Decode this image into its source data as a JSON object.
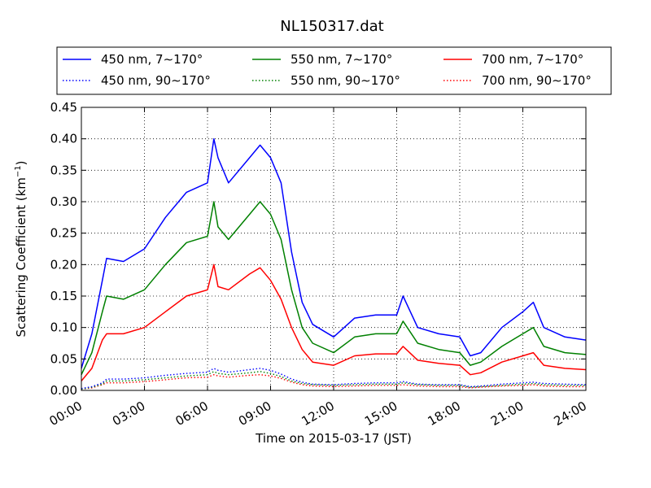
{
  "chart_data": {
    "type": "line",
    "title": "NL150317.dat",
    "xlabel": "Time on 2015-03-17 (JST)",
    "ylabel_main": "Scattering Coefficient (km",
    "ylabel_sup": "−1",
    "ylabel_end": ")",
    "xlim": [
      "00:00",
      "24:00"
    ],
    "ylim": [
      0,
      0.45
    ],
    "x_ticks": [
      {
        "hour": 0,
        "label": "00:00"
      },
      {
        "hour": 3,
        "label": "03:00"
      },
      {
        "hour": 6,
        "label": "06:00"
      },
      {
        "hour": 9,
        "label": "09:00"
      },
      {
        "hour": 12,
        "label": "12:00"
      },
      {
        "hour": 15,
        "label": "15:00"
      },
      {
        "hour": 18,
        "label": "18:00"
      },
      {
        "hour": 21,
        "label": "21:00"
      },
      {
        "hour": 24,
        "label": "24:00"
      }
    ],
    "y_ticks": [
      {
        "value": 0.0,
        "label": "0.00"
      },
      {
        "value": 0.05,
        "label": "0.05"
      },
      {
        "value": 0.1,
        "label": "0.10"
      },
      {
        "value": 0.15,
        "label": "0.15"
      },
      {
        "value": 0.2,
        "label": "0.20"
      },
      {
        "value": 0.25,
        "label": "0.25"
      },
      {
        "value": 0.3,
        "label": "0.30"
      },
      {
        "value": 0.35,
        "label": "0.35"
      },
      {
        "value": 0.4,
        "label": "0.40"
      },
      {
        "value": 0.45,
        "label": "0.45"
      }
    ],
    "grid": true,
    "legend_position": "top",
    "x_hours": [
      0,
      0.5,
      1,
      1.2,
      2,
      3,
      4,
      5,
      6,
      6.3,
      6.5,
      7,
      8,
      8.5,
      9,
      9.5,
      10,
      10.5,
      11,
      12,
      13,
      14,
      15,
      15.3,
      16,
      17,
      18,
      18.5,
      19,
      20,
      21,
      21.5,
      22,
      23,
      24
    ],
    "series": [
      {
        "name": "450 nm, 7∼170°",
        "color": "#0000ff",
        "style": "solid",
        "values": [
          0.035,
          0.09,
          0.175,
          0.21,
          0.205,
          0.225,
          0.275,
          0.315,
          0.33,
          0.4,
          0.37,
          0.33,
          0.37,
          0.39,
          0.37,
          0.33,
          0.22,
          0.14,
          0.105,
          0.085,
          0.115,
          0.12,
          0.12,
          0.15,
          0.1,
          0.09,
          0.085,
          0.055,
          0.06,
          0.1,
          0.125,
          0.14,
          0.1,
          0.085,
          0.08
        ]
      },
      {
        "name": "450 nm, 90∼170°",
        "color": "#0000ff",
        "style": "dotted",
        "values": [
          0.003,
          0.006,
          0.012,
          0.018,
          0.018,
          0.02,
          0.024,
          0.027,
          0.029,
          0.035,
          0.032,
          0.029,
          0.033,
          0.035,
          0.032,
          0.026,
          0.018,
          0.013,
          0.01,
          0.009,
          0.011,
          0.012,
          0.012,
          0.014,
          0.01,
          0.009,
          0.009,
          0.006,
          0.007,
          0.01,
          0.012,
          0.013,
          0.011,
          0.01,
          0.009
        ]
      },
      {
        "name": "550 nm, 7∼170°",
        "color": "#008000",
        "style": "solid",
        "values": [
          0.025,
          0.06,
          0.125,
          0.15,
          0.145,
          0.16,
          0.2,
          0.235,
          0.245,
          0.3,
          0.26,
          0.24,
          0.28,
          0.3,
          0.28,
          0.24,
          0.16,
          0.1,
          0.075,
          0.06,
          0.085,
          0.09,
          0.09,
          0.11,
          0.075,
          0.065,
          0.06,
          0.04,
          0.045,
          0.07,
          0.09,
          0.1,
          0.07,
          0.06,
          0.057
        ]
      },
      {
        "name": "550 nm, 90∼170°",
        "color": "#008000",
        "style": "dotted",
        "values": [
          0.002,
          0.005,
          0.01,
          0.015,
          0.015,
          0.017,
          0.02,
          0.023,
          0.025,
          0.03,
          0.027,
          0.025,
          0.028,
          0.03,
          0.027,
          0.022,
          0.015,
          0.011,
          0.009,
          0.008,
          0.009,
          0.01,
          0.01,
          0.012,
          0.009,
          0.008,
          0.008,
          0.005,
          0.006,
          0.008,
          0.01,
          0.011,
          0.009,
          0.008,
          0.008
        ]
      },
      {
        "name": "700 nm, 7∼170°",
        "color": "#ff0000",
        "style": "solid",
        "values": [
          0.015,
          0.035,
          0.08,
          0.09,
          0.09,
          0.1,
          0.125,
          0.15,
          0.16,
          0.2,
          0.165,
          0.16,
          0.185,
          0.195,
          0.175,
          0.145,
          0.1,
          0.065,
          0.045,
          0.04,
          0.055,
          0.058,
          0.058,
          0.07,
          0.048,
          0.043,
          0.04,
          0.025,
          0.028,
          0.045,
          0.055,
          0.06,
          0.04,
          0.035,
          0.033
        ]
      },
      {
        "name": "700 nm, 90∼170°",
        "color": "#ff0000",
        "style": "dotted",
        "values": [
          0.002,
          0.004,
          0.009,
          0.012,
          0.012,
          0.014,
          0.017,
          0.02,
          0.021,
          0.025,
          0.023,
          0.021,
          0.024,
          0.025,
          0.023,
          0.019,
          0.013,
          0.009,
          0.007,
          0.006,
          0.007,
          0.008,
          0.008,
          0.009,
          0.007,
          0.006,
          0.006,
          0.004,
          0.005,
          0.007,
          0.008,
          0.009,
          0.007,
          0.006,
          0.006
        ]
      }
    ]
  }
}
